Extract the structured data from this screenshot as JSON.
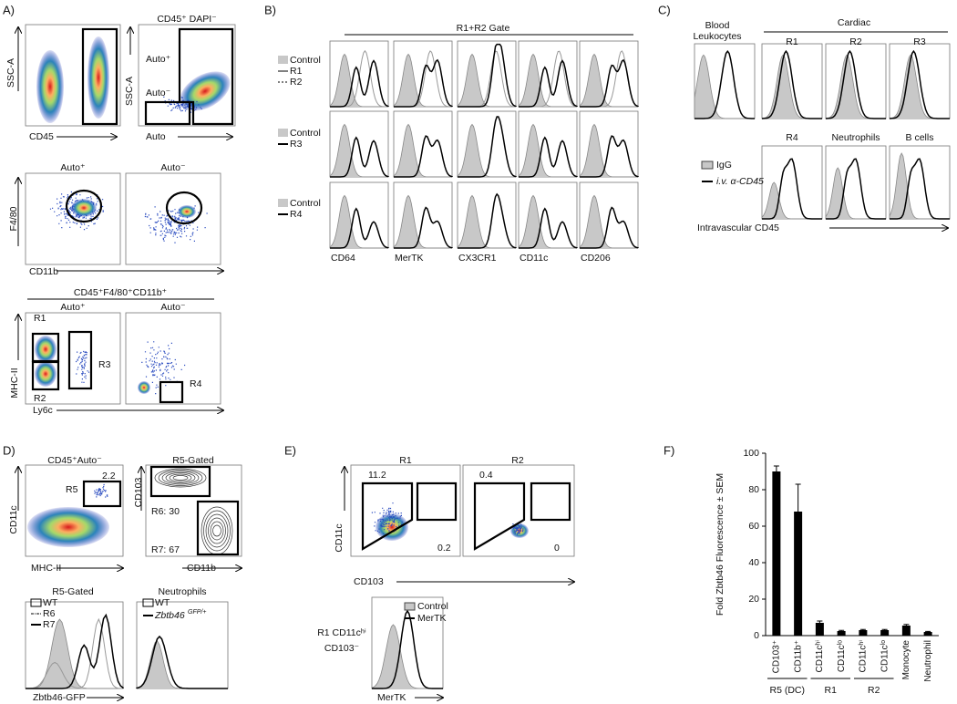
{
  "figure": {
    "panel_labels": [
      "A)",
      "B)",
      "C)",
      "D)",
      "E)",
      "F)"
    ],
    "a": {
      "ssc1": "SSC-A",
      "cd45": "CD45",
      "title2": "CD45⁺ DAPI⁻",
      "auto_pos": "Auto⁺",
      "auto_neg": "Auto⁻",
      "ssc2": "SSC-A",
      "auto": "Auto",
      "sub_pos": "Auto⁺",
      "sub_neg": "Auto⁻",
      "f480": "F4/80",
      "cd11b": "CD11b",
      "gate": "CD45⁺F4/80⁺CD11b⁺",
      "gate_pos": "Auto⁺",
      "gate_neg": "Auto⁻",
      "r1": "R1",
      "r2": "R2",
      "r3": "R3",
      "r4": "R4",
      "mhc": "MHC-II",
      "ly6c": "Ly6c"
    },
    "b": {
      "gate": "R1+R2 Gate",
      "legend1": [
        "Control",
        "R1",
        "R2"
      ],
      "legend2": [
        "Control",
        "R3"
      ],
      "legend3": [
        "Control",
        "R4"
      ],
      "markers": [
        "CD64",
        "MerTK",
        "CX3CR1",
        "CD11c",
        "CD206"
      ]
    },
    "c": {
      "blood": [
        "Blood",
        "Leukocytes"
      ],
      "cardiac": "Cardiac",
      "row1": [
        "R1",
        "R2",
        "R3"
      ],
      "row2": [
        "R4",
        "Neutrophils",
        "B cells"
      ],
      "legend": [
        "IgG",
        "i.v. α-CD45"
      ],
      "axis": "Intravascular CD45"
    },
    "d": {
      "title1": "CD45⁺Auto⁻",
      "pct": "2.2",
      "r5": "R5",
      "cd11c": "CD11c",
      "mhc": "MHC-II",
      "title2": "R5-Gated",
      "cd103": "CD103",
      "r6": "R6: 30",
      "r7": "R7: 67",
      "cd11b": "CD11b",
      "hist1": "R5-Gated",
      "hist2": "Neutrophils",
      "legend1": [
        "WT",
        "R6",
        "R7"
      ],
      "legend2": [
        "WT",
        "Zbtb46",
        "GFP/+"
      ],
      "axis": "Zbtb46-GFP"
    },
    "e": {
      "r1": "R1",
      "r2": "R2",
      "p1": "11.2",
      "p2": "0.2",
      "p3": "0.4",
      "p4": "0",
      "cd11c": "CD11c",
      "cd103": "CD103",
      "gate": [
        "R1 CD11cʰⁱ",
        "CD103⁻"
      ],
      "legend": [
        "Control",
        "MerTK"
      ],
      "axis": "MerTK"
    }
  },
  "chart_data": {
    "type": "bar",
    "categories": [
      "CD103⁺",
      "CD11b⁺",
      "CD11cʰⁱ",
      "CD11cˡᵒ",
      "CD11cʰⁱ",
      "CD11cˡᵒ",
      "Monocyte",
      "Neutrophil"
    ],
    "values": [
      90,
      68,
      7,
      2.5,
      3,
      3,
      5.5,
      2
    ],
    "errors": [
      3,
      15,
      1,
      0.4,
      0.4,
      0.4,
      0.6,
      0.3
    ],
    "color": "#000000",
    "ylabel": "Fold Zbtb46 Fluorescence ± SEM",
    "groups": [
      "R5 (DC)",
      "R1",
      "R2"
    ],
    "ylim": [
      0,
      100
    ],
    "yticks": [
      0,
      20,
      40,
      60,
      80,
      100
    ]
  }
}
